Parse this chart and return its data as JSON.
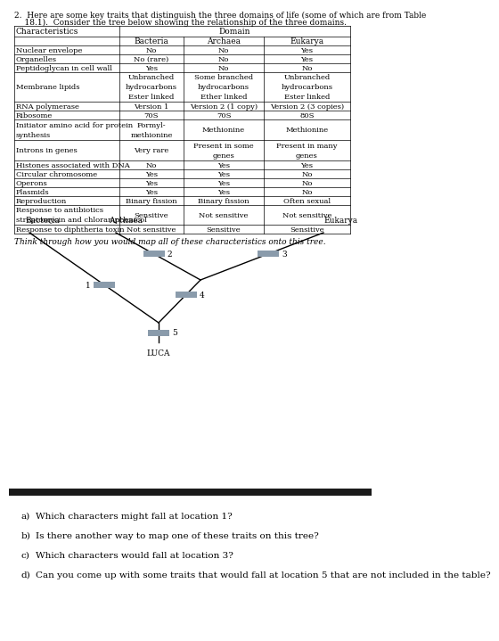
{
  "title_line1": "2.  Here are some key traits that distinguish the three domains of life (some of which are from Table",
  "title_line2": "    18.1).  Consider the tree below showing the relationship of the three domains.",
  "think_text": "Think through how you would map all of these characteristics onto this tree.",
  "table": {
    "domain_header": "Domain",
    "col0_header": "Characteristics",
    "col_headers": [
      "Bacteria",
      "Archaea",
      "Eukarya"
    ],
    "rows": [
      [
        "Nuclear envelope",
        "No",
        "No",
        "Yes"
      ],
      [
        "Organelles",
        "No (rare)",
        "No",
        "Yes"
      ],
      [
        "Peptidoglycan in cell wall",
        "Yes",
        "No",
        "No"
      ],
      [
        "Membrane lipids",
        "Unbranched\nhydrocarbons\nEster linked",
        "Some branched\nhydrocarbons\nEther linked",
        "Unbranched\nhydrocarbons\nEster linked"
      ],
      [
        "RNA polymerase",
        "Version 1",
        "Version 2 (1 copy)",
        "Version 2 (3 copies)"
      ],
      [
        "Ribosome",
        "70S",
        "70S",
        "80S"
      ],
      [
        "Initiator amino acid for protein\nsynthesis",
        "Formyl-\nmethionine",
        "Methionine",
        "Methionine"
      ],
      [
        "Introns in genes",
        "Very rare",
        "Present in some\ngenes",
        "Present in many\ngenes"
      ],
      [
        "Histones associated with DNA",
        "No",
        "Yes",
        "Yes"
      ],
      [
        "Circular chromosome",
        "Yes",
        "Yes",
        "No"
      ],
      [
        "Operons",
        "Yes",
        "Yes",
        "No"
      ],
      [
        "Plasmids",
        "Yes",
        "Yes",
        "No"
      ],
      [
        "Reproduction",
        "Binary fission",
        "Binary fission",
        "Often sexual"
      ],
      [
        "Response to antibiotics\nstreptomycin and chloramphenicol",
        "Sensitive",
        "Not sensitive",
        "Not sensitive"
      ],
      [
        "Response to diphtheria toxin",
        "Not sensitive",
        "Sensitive",
        "Sensitive"
      ]
    ]
  },
  "tree": {
    "bacteria_label": "Bacteria",
    "archaea_label": "Archaea",
    "eukarya_label": "Eukarya",
    "luca_label": "LUCA",
    "branch_color": "#000000",
    "marker_color": "#8a9bab"
  },
  "divider_color": "#1a1a1a",
  "questions": [
    [
      "a)",
      "Which characters might fall at location 1?"
    ],
    [
      "b)",
      "Is there another way to map one of these traits on this tree?"
    ],
    [
      "c)",
      "Which characters would fall at location 3?"
    ],
    [
      "d)",
      "Can you come up with some traits that would fall at location 5 that are not included in the table?"
    ]
  ],
  "bg_color": "#ffffff",
  "text_color": "#000000",
  "fs": 6.5,
  "fs_small": 6.0,
  "fs_q": 7.5
}
